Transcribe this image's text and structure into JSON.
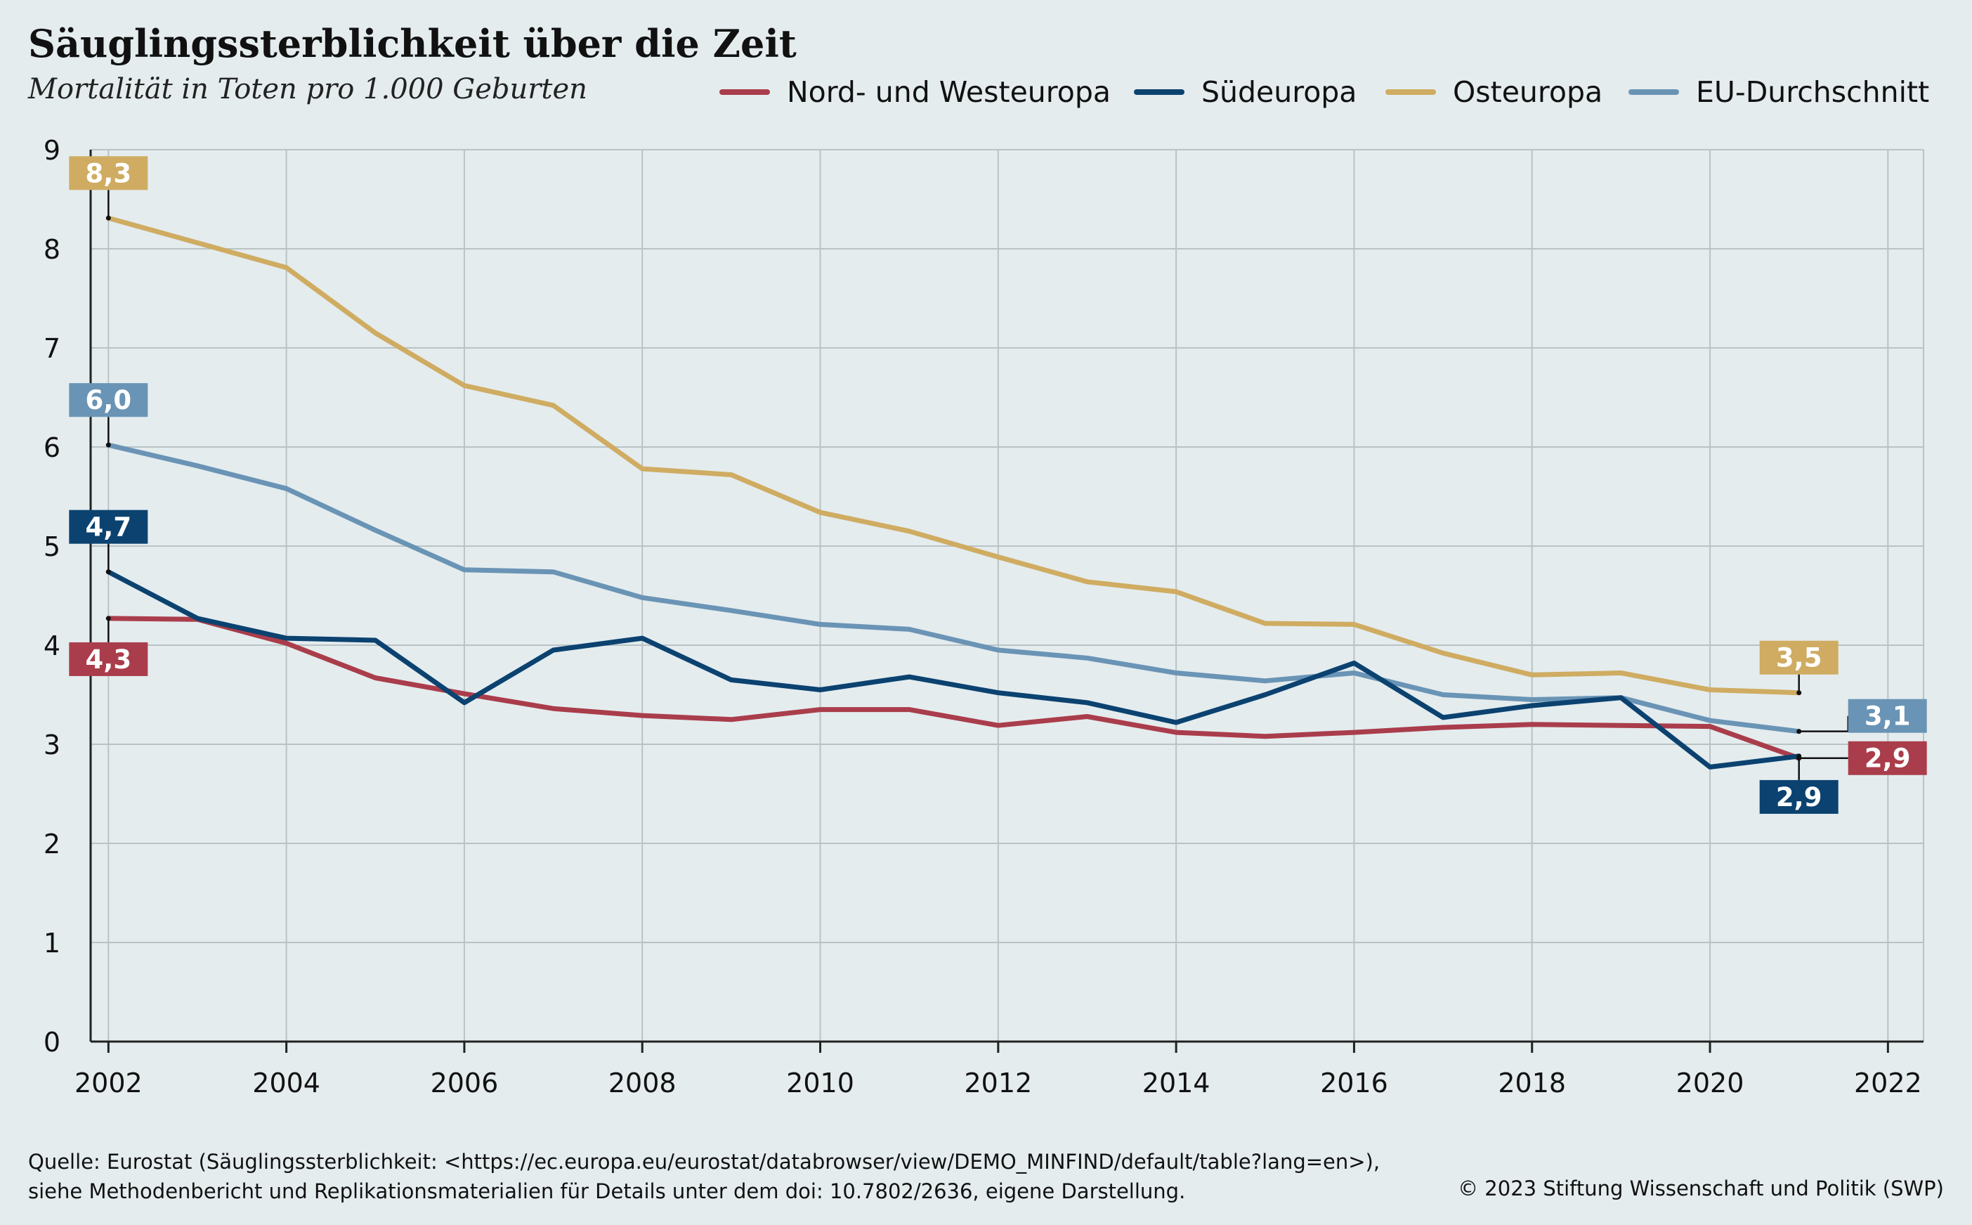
{
  "colors": {
    "background": "#e4ecee",
    "grid": "#b9c2c5",
    "axis": "#222222"
  },
  "footer": {
    "source_line1": "Quelle: Eurostat (Säuglingssterblichkeit: <https://ec.europa.eu/eurostat/databrowser/view/DEMO_MINFIND/default/table?lang=en>),",
    "source_line2": "siehe Methodenbericht und Replikationsmaterialien für Details unter dem doi: 10.7802/2636, eigene Darstellung.",
    "copyright": "© 2023 Stiftung Wissenschaft und Politik (SWP)"
  },
  "chart_data": {
    "type": "line",
    "title": "Säuglingssterblichkeit über die Zeit",
    "subtitle": "Mortalität in Toten pro 1.000 Geburten",
    "xlabel": "",
    "ylabel": "",
    "xlim": [
      2001.8,
      2022.4
    ],
    "ylim": [
      0,
      9
    ],
    "x_ticks": [
      2002,
      2004,
      2006,
      2008,
      2010,
      2012,
      2014,
      2016,
      2018,
      2020,
      2022
    ],
    "y_ticks": [
      0,
      1,
      2,
      3,
      4,
      5,
      6,
      7,
      8,
      9
    ],
    "grid": true,
    "legend_position": "top-right",
    "x": [
      2002,
      2003,
      2004,
      2005,
      2006,
      2007,
      2008,
      2009,
      2010,
      2011,
      2012,
      2013,
      2014,
      2015,
      2016,
      2017,
      2018,
      2019,
      2020,
      2021
    ],
    "series": [
      {
        "name": "EU-Durchschnitt",
        "color": "#6a94b5",
        "values": [
          6.02,
          5.81,
          5.58,
          5.16,
          4.76,
          4.74,
          4.48,
          4.35,
          4.21,
          4.16,
          3.95,
          3.87,
          3.72,
          3.64,
          3.72,
          3.5,
          3.45,
          3.47,
          3.24,
          3.13
        ],
        "start_label": "6,0",
        "end_label": "3,1"
      },
      {
        "name": "Nord- und Westeuropa",
        "color": "#aa3d4b",
        "values": [
          4.27,
          4.26,
          4.02,
          3.67,
          3.51,
          3.36,
          3.29,
          3.25,
          3.35,
          3.35,
          3.19,
          3.28,
          3.12,
          3.08,
          3.12,
          3.17,
          3.2,
          3.19,
          3.18,
          2.86
        ],
        "start_label": "4,3",
        "end_label": "2,9"
      },
      {
        "name": "Südeuropa",
        "color": "#0b4270",
        "values": [
          4.74,
          4.27,
          4.07,
          4.05,
          3.42,
          3.95,
          4.07,
          3.65,
          3.55,
          3.68,
          3.52,
          3.42,
          3.22,
          3.5,
          3.82,
          3.27,
          3.39,
          3.47,
          2.77,
          2.88
        ],
        "start_label": "4,7",
        "end_label": "2,9"
      },
      {
        "name": "Osteuropa",
        "color": "#cfac62",
        "values": [
          8.31,
          8.06,
          7.81,
          7.15,
          6.62,
          6.42,
          5.78,
          5.72,
          5.34,
          5.15,
          4.89,
          4.64,
          4.54,
          4.22,
          4.21,
          3.92,
          3.7,
          3.72,
          3.55,
          3.52
        ],
        "start_label": "8,3",
        "end_label": "3,5"
      }
    ]
  }
}
